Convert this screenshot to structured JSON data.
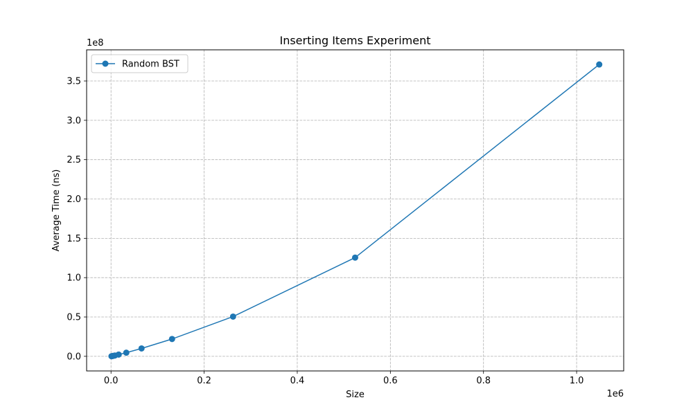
{
  "chart_data": {
    "type": "line",
    "title": "Inserting Items Experiment",
    "xlabel": "Size",
    "ylabel": "Average Time (ns)",
    "x_offset_text": "1e6",
    "y_offset_text": "1e8",
    "xlim": [
      -0.0524,
      1.1011
    ],
    "ylim": [
      -0.186,
      3.896
    ],
    "x_scale": 1000000,
    "y_scale": 100000000,
    "x_ticks": [
      0.0,
      0.2,
      0.4,
      0.6,
      0.8,
      1.0
    ],
    "x_tick_labels": [
      "0.0",
      "0.2",
      "0.4",
      "0.6",
      "0.8",
      "1.0"
    ],
    "y_ticks": [
      0.0,
      0.5,
      1.0,
      1.5,
      2.0,
      2.5,
      3.0,
      3.5
    ],
    "y_tick_labels": [
      "0.0",
      "0.5",
      "1.0",
      "1.5",
      "2.0",
      "2.5",
      "3.0",
      "3.5"
    ],
    "grid": true,
    "grid_style": "dashed",
    "legend_position": "top-left",
    "series": [
      {
        "name": "Random BST",
        "color": "#1f77b4",
        "marker": "circle",
        "x": [
          1024,
          2048,
          4096,
          8192,
          16384,
          32768,
          65536,
          131072,
          262144,
          524288,
          1048576
        ],
        "y": [
          100000,
          250000,
          500000,
          1000000,
          2200000,
          4600000,
          10000000,
          22000000,
          50500000,
          125500000,
          371000000
        ]
      }
    ]
  }
}
